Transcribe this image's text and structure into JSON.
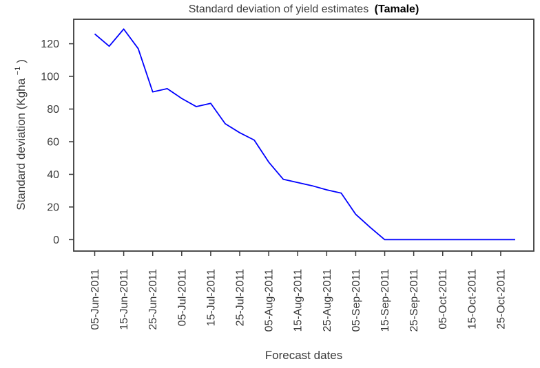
{
  "page": {
    "background": "#ffffff"
  },
  "chart_data": {
    "type": "line",
    "title_main": "Standard deviation of yield estimates",
    "title_suffix": "(Tamale)",
    "xlabel": "Forecast dates",
    "ylabel": "Standard deviation (Kgha⁻¹)",
    "ylabel_parts": {
      "main": "Standard deviation (Kgha",
      "sup": "−1",
      "close": ")"
    },
    "x": [
      "05-Jun-2011",
      "10-Jun-2011",
      "15-Jun-2011",
      "20-Jun-2011",
      "25-Jun-2011",
      "30-Jun-2011",
      "05-Jul-2011",
      "10-Jul-2011",
      "15-Jul-2011",
      "20-Jul-2011",
      "25-Jul-2011",
      "30-Jul-2011",
      "05-Aug-2011",
      "10-Aug-2011",
      "15-Aug-2011",
      "20-Aug-2011",
      "25-Aug-2011",
      "30-Aug-2011",
      "05-Sep-2011",
      "10-Sep-2011",
      "15-Sep-2011",
      "20-Sep-2011",
      "25-Sep-2011",
      "30-Sep-2011",
      "05-Oct-2011",
      "10-Oct-2011",
      "15-Oct-2011",
      "20-Oct-2011",
      "25-Oct-2011",
      "30-Oct-2011"
    ],
    "values": [
      126,
      118.5,
      129,
      117,
      90.5,
      92.5,
      86.5,
      81.5,
      83.5,
      71,
      65.5,
      61,
      47.5,
      37,
      35,
      33,
      30.5,
      28.5,
      15.5,
      7.5,
      0,
      0,
      0,
      0,
      0,
      0,
      0,
      0,
      0,
      0
    ],
    "xtick_labels": [
      "05-Jun-2011",
      "15-Jun-2011",
      "25-Jun-2011",
      "05-Jul-2011",
      "15-Jul-2011",
      "25-Jul-2011",
      "05-Aug-2011",
      "15-Aug-2011",
      "25-Aug-2011",
      "05-Sep-2011",
      "15-Sep-2011",
      "25-Sep-2011",
      "05-Oct-2011",
      "15-Oct-2011",
      "25-Oct-2011"
    ],
    "xtick_every": 2,
    "yticks": [
      0,
      20,
      40,
      60,
      80,
      100,
      120
    ],
    "ylim": [
      -7,
      135
    ],
    "grid": false,
    "legend_position": "none",
    "line_color": "#0000ff",
    "axis_color": "#3a3a3a"
  }
}
